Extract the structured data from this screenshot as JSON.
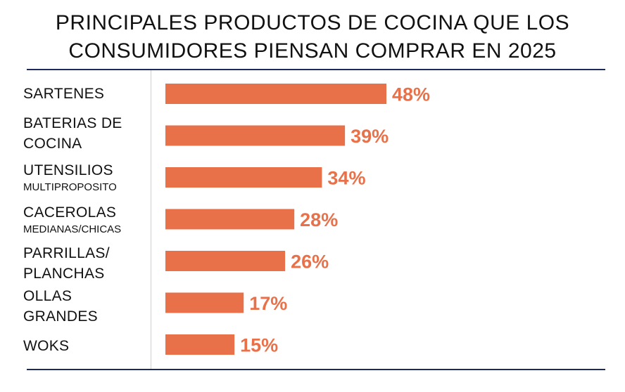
{
  "colors": {
    "bar": "#E8714A",
    "rule": "#1F2A5C",
    "text": "#111111"
  },
  "chart_data": {
    "type": "bar",
    "orientation": "horizontal",
    "title_lines": [
      "PRINCIPALES PRODUCTOS DE COCINA QUE LOS",
      "CONSUMIDORES PIENSAN COMPRAR EN 2025"
    ],
    "categories": [
      {
        "main": [
          "SARTENES"
        ],
        "sub": ""
      },
      {
        "main": [
          "BATERIAS DE",
          "COCINA"
        ],
        "sub": ""
      },
      {
        "main": [
          "UTENSILIOS"
        ],
        "sub": "MULTIPROPOSITO"
      },
      {
        "main": [
          "CACEROLAS"
        ],
        "sub": "MEDIANAS/CHICAS"
      },
      {
        "main": [
          "PARRILLAS/",
          "PLANCHAS"
        ],
        "sub": ""
      },
      {
        "main": [
          "OLLAS",
          "GRANDES"
        ],
        "sub": ""
      },
      {
        "main": [
          "WOKS"
        ],
        "sub": ""
      }
    ],
    "values": [
      48,
      39,
      34,
      28,
      26,
      17,
      15
    ],
    "value_labels": [
      "48%",
      "39%",
      "34%",
      "28%",
      "26%",
      "17%",
      "15%"
    ],
    "unit": "%",
    "xlim": [
      0,
      48
    ],
    "grid": false,
    "legend": "none"
  }
}
